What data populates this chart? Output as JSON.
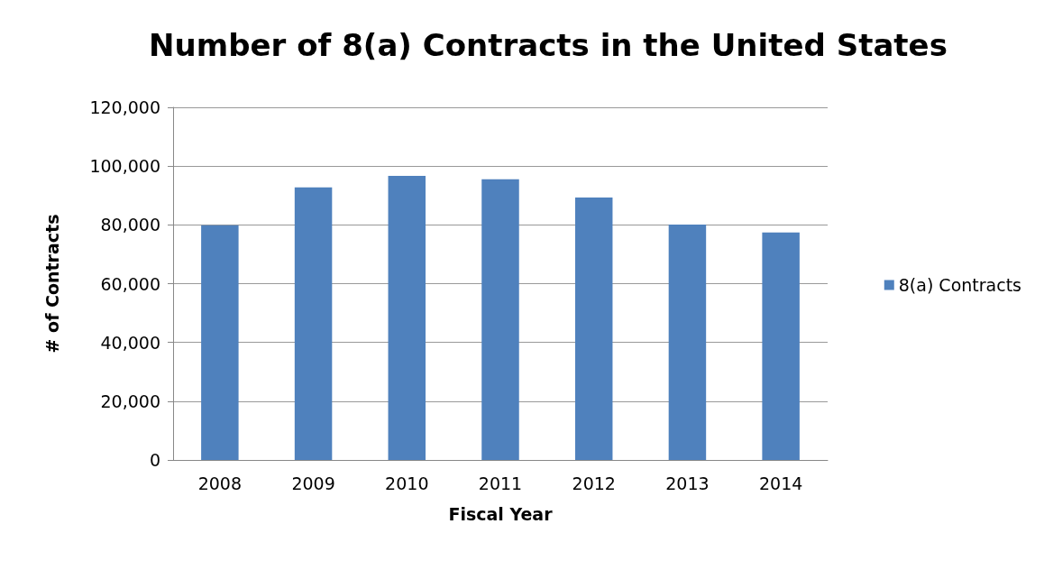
{
  "chart_data": {
    "type": "bar",
    "title": "Number of 8(a) Contracts in the United States",
    "xlabel": "Fiscal Year",
    "ylabel": "# of Contracts",
    "categories": [
      "2008",
      "2009",
      "2010",
      "2011",
      "2012",
      "2013",
      "2014"
    ],
    "series": [
      {
        "name": "8(a) Contracts",
        "color": "#4f81bd",
        "values": [
          79900,
          92800,
          96700,
          95500,
          89300,
          80100,
          77400
        ]
      }
    ],
    "ylim": [
      0,
      120000
    ],
    "yticks": [
      0,
      {
        "value": 20000,
        "label": "20,000"
      },
      {
        "value": 40000,
        "label": "40,000"
      },
      {
        "value": 60000,
        "label": "60,000"
      },
      {
        "value": 80000,
        "label": "80,000"
      },
      {
        "value": 100000,
        "label": "100,000"
      },
      {
        "value": 120000,
        "label": "120,000"
      }
    ],
    "grid": "y",
    "legend": "right"
  }
}
